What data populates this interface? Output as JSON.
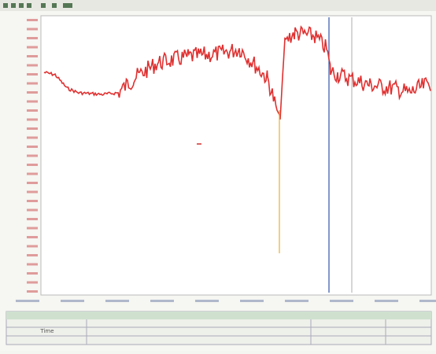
{
  "table": {
    "header": [
      "Time"
    ]
  }
}
